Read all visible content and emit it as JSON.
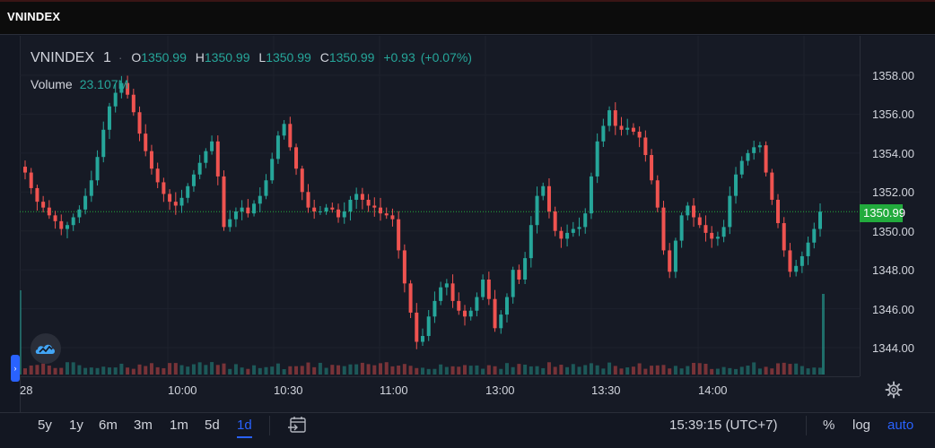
{
  "window": {
    "title": "VNINDEX"
  },
  "legend": {
    "symbol": "VNINDEX",
    "interval": "1",
    "open_label": "O",
    "open": "1350.99",
    "high_label": "H",
    "high": "1350.99",
    "low_label": "L",
    "low": "1350.99",
    "close_label": "C",
    "close": "1350.99",
    "change": "+0.93",
    "change_pct": "(+0.07%)"
  },
  "volume_legend": {
    "label": "Volume",
    "value": "23.107M"
  },
  "last_price": "1350.99",
  "colors": {
    "up": "#26a69a",
    "down": "#ef5350",
    "last_price_bg": "#22ab3d",
    "accent": "#2962ff"
  },
  "icons": {
    "logo": "tradingview-cloud-icon",
    "settings": "gear-icon",
    "date_range": "calendar-goto-icon",
    "collapse": "chevron-right-icon"
  },
  "chart_data": {
    "type": "candlestick",
    "title": "",
    "ylim": [
      1343.0,
      1359.0
    ],
    "y_ticks": [
      "1344.00",
      "1346.00",
      "1348.00",
      "1350.00",
      "1352.00",
      "1354.00",
      "1356.00",
      "1358.00"
    ],
    "x_ticks": [
      "28",
      "10:00",
      "10:30",
      "11:00",
      "13:00",
      "13:30",
      "14:00"
    ],
    "close": [
      1353.0,
      1352.2,
      1351.5,
      1351.2,
      1350.8,
      1350.5,
      1350.1,
      1350.3,
      1350.7,
      1351.1,
      1351.8,
      1352.6,
      1353.8,
      1355.2,
      1356.4,
      1357.1,
      1357.6,
      1357.0,
      1356.1,
      1355.0,
      1354.1,
      1353.2,
      1352.5,
      1351.9,
      1351.5,
      1351.3,
      1351.7,
      1352.3,
      1352.9,
      1353.5,
      1354.1,
      1354.6,
      1352.8,
      1350.2,
      1350.6,
      1351.0,
      1351.2,
      1350.9,
      1351.4,
      1351.8,
      1352.6,
      1353.7,
      1354.9,
      1355.5,
      1354.3,
      1353.2,
      1352.0,
      1351.2,
      1351.0,
      1351.0,
      1351.2,
      1351.1,
      1350.7,
      1351.0,
      1351.6,
      1351.9,
      1351.6,
      1351.3,
      1351.2,
      1350.9,
      1350.8,
      1350.6,
      1349.0,
      1347.3,
      1345.8,
      1344.3,
      1344.6,
      1345.6,
      1346.4,
      1347.1,
      1347.3,
      1346.4,
      1345.9,
      1345.6,
      1345.9,
      1346.6,
      1347.5,
      1346.5,
      1345.0,
      1345.7,
      1346.6,
      1348.0,
      1347.5,
      1348.6,
      1350.3,
      1351.8,
      1352.3,
      1351.0,
      1350.0,
      1349.6,
      1349.9,
      1350.1,
      1350.2,
      1350.9,
      1352.8,
      1354.6,
      1355.4,
      1356.2,
      1355.4,
      1355.2,
      1355.3,
      1355.1,
      1354.8,
      1353.9,
      1352.6,
      1351.2,
      1349.0,
      1347.9,
      1349.5,
      1350.8,
      1351.3,
      1350.7,
      1350.3,
      1349.9,
      1349.6,
      1349.7,
      1350.2,
      1351.8,
      1352.9,
      1353.6,
      1354.0,
      1354.3,
      1354.4,
      1353.0,
      1351.6,
      1350.4,
      1349.0,
      1347.9,
      1348.2,
      1348.7,
      1349.4,
      1350.1,
      1350.99
    ],
    "volume_note": ""
  },
  "time_axis": {
    "labels": [
      {
        "text": "28"
      },
      {
        "text": "10:00"
      },
      {
        "text": "10:30"
      },
      {
        "text": "11:00"
      },
      {
        "text": "13:00"
      },
      {
        "text": "13:30"
      },
      {
        "text": "14:00"
      }
    ]
  },
  "bottom_bar": {
    "ranges": [
      "5y",
      "1y",
      "6m",
      "3m",
      "1m",
      "5d",
      "1d"
    ],
    "active_range": "1d",
    "clock": "15:39:15 (UTC+7)",
    "percent_label": "%",
    "log_label": "log",
    "auto_label": "auto"
  }
}
